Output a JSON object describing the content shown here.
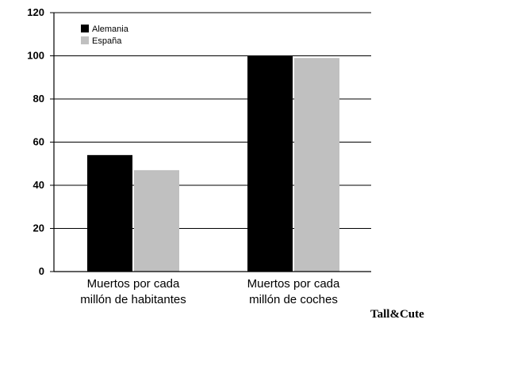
{
  "chart_data": {
    "type": "bar",
    "categories": [
      [
        "Muertos por cada",
        "millón de habitantes"
      ],
      [
        "Muertos por cada",
        "millón de coches"
      ]
    ],
    "series": [
      {
        "name": "Alemania",
        "color": "#000000",
        "values": [
          54,
          100
        ]
      },
      {
        "name": "España",
        "color": "#c0c0c0",
        "values": [
          47,
          99
        ]
      }
    ],
    "ylim": [
      0,
      120
    ],
    "yticks": [
      0,
      20,
      40,
      60,
      80,
      100,
      120
    ],
    "grid": true,
    "legend": "top-left"
  },
  "watermark": "Tall&Cute"
}
